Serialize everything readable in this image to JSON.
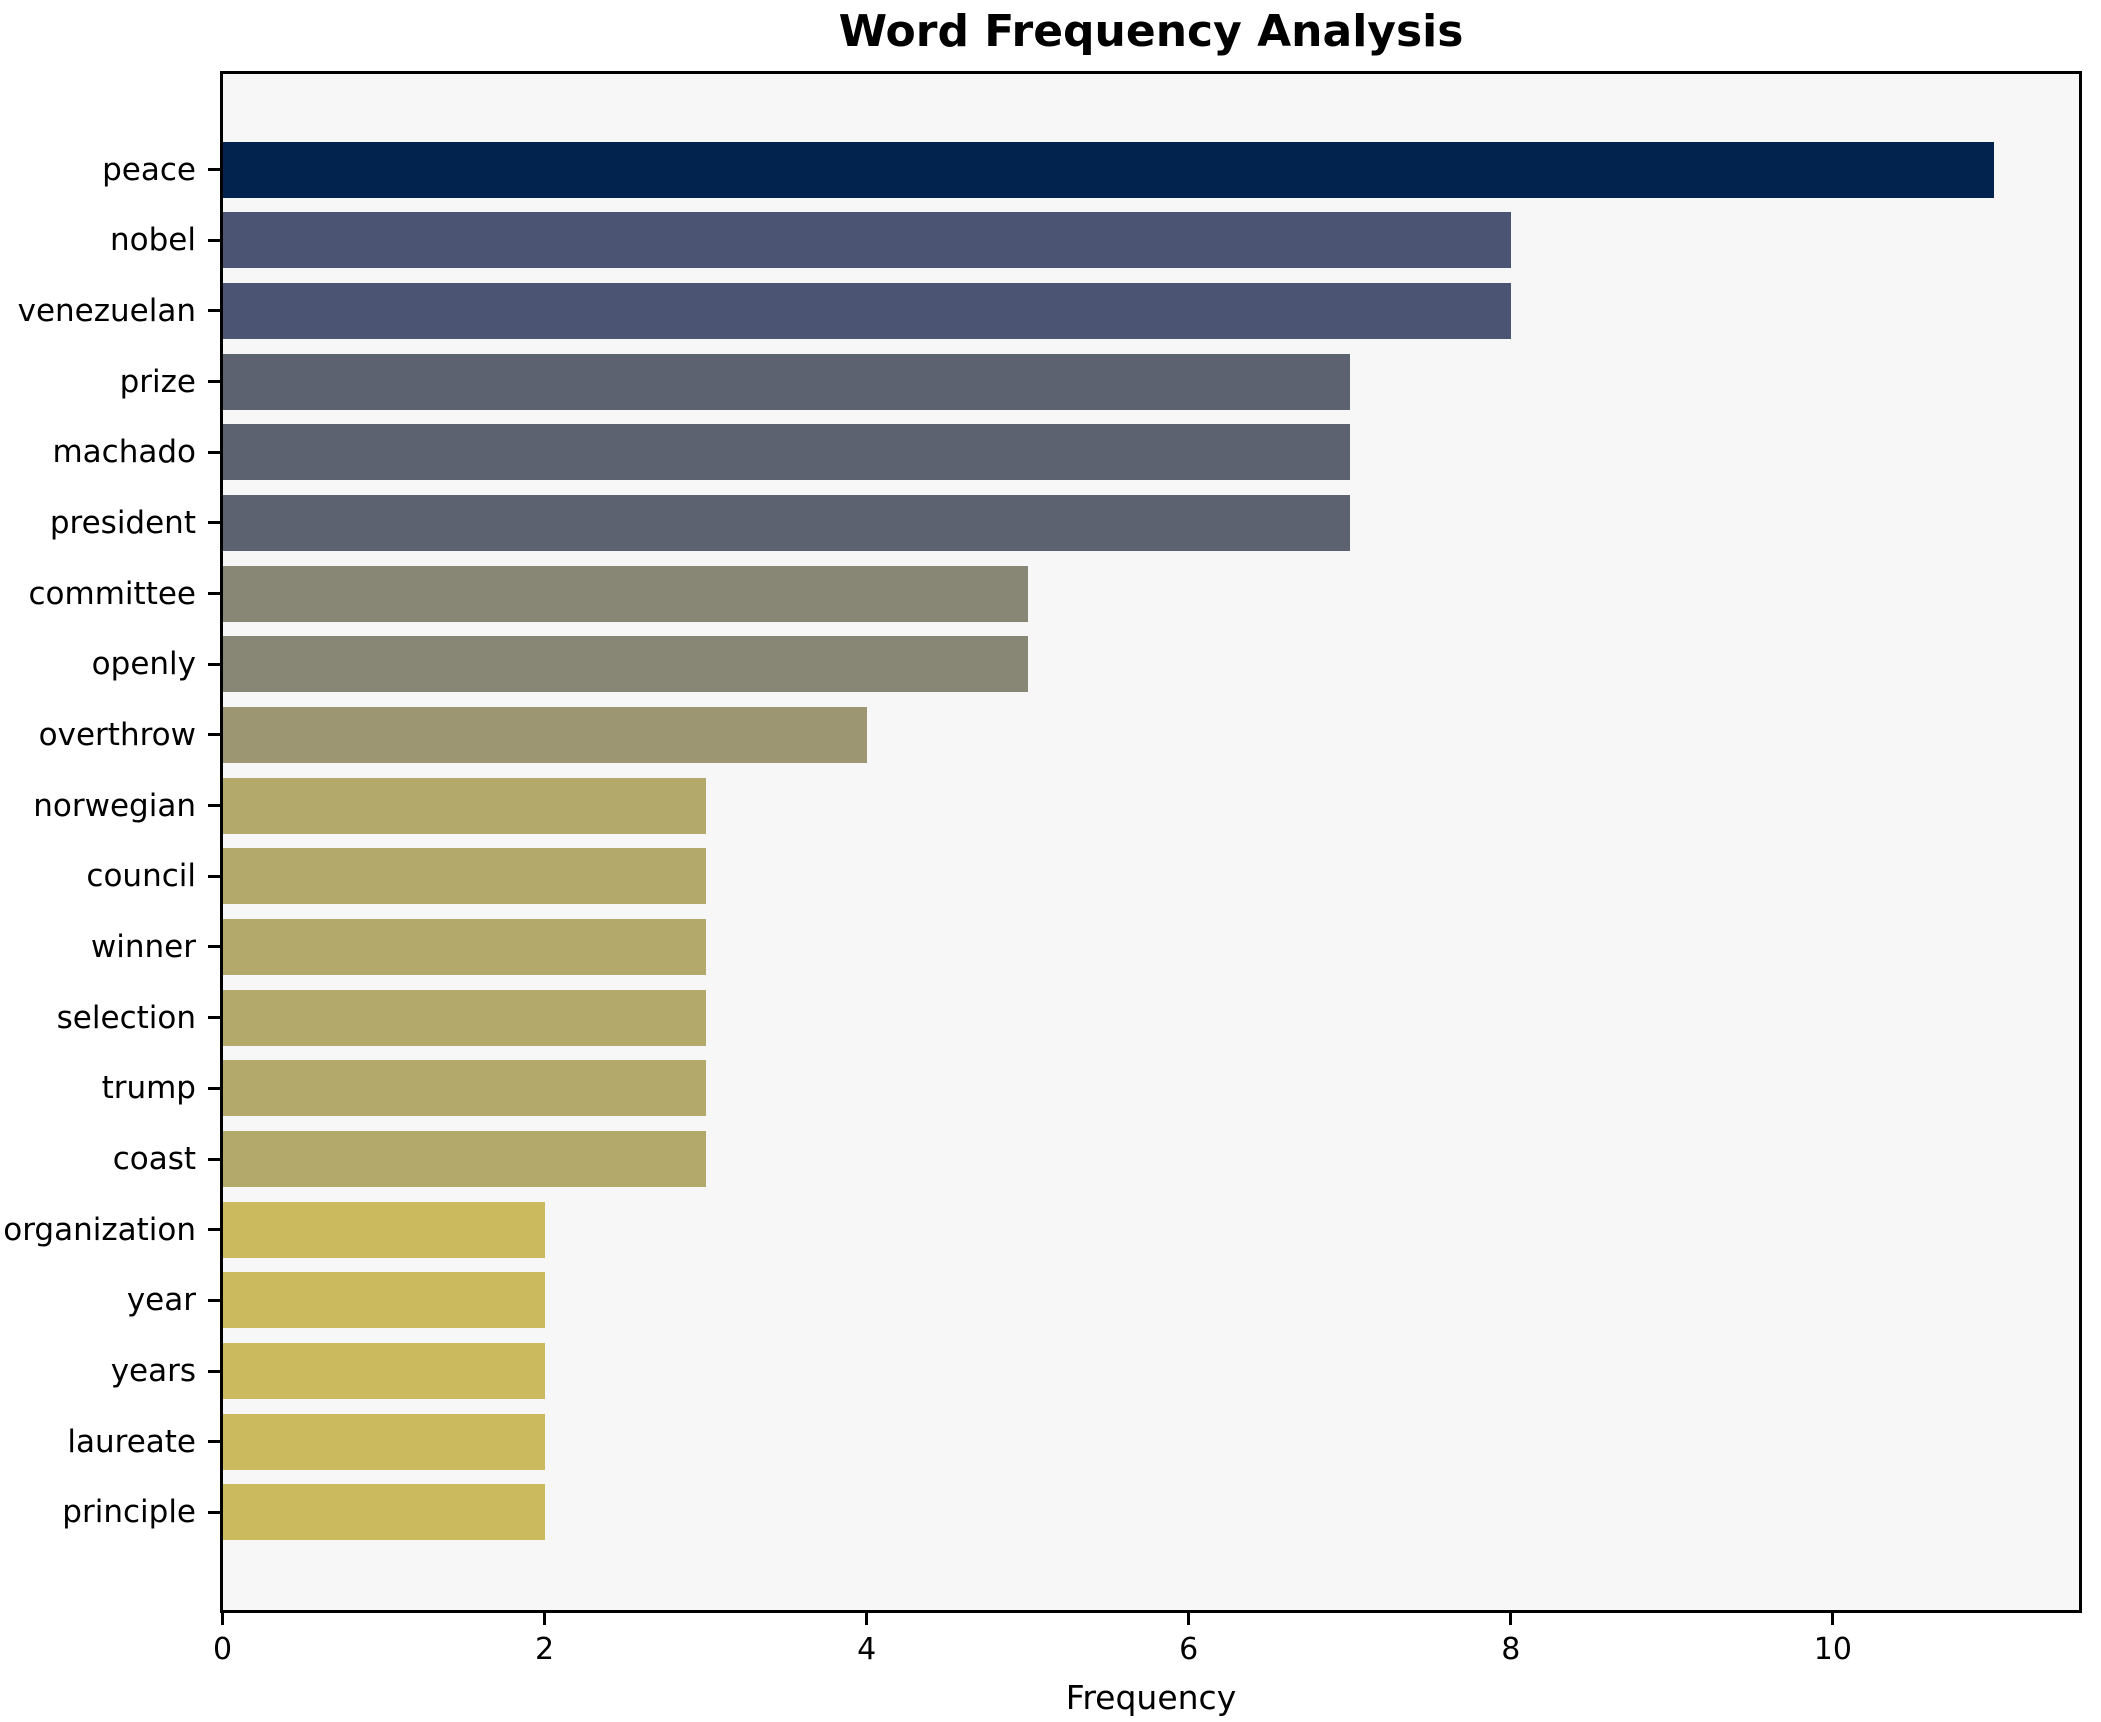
{
  "figure": {
    "title": "Word Frequency Analysis",
    "background": "#ffffff"
  },
  "chart_data": {
    "type": "bar",
    "orientation": "horizontal",
    "title": "Word Frequency Analysis",
    "xlabel": "Frequency",
    "ylabel": "",
    "categories": [
      "peace",
      "nobel",
      "venezuelan",
      "prize",
      "machado",
      "president",
      "committee",
      "openly",
      "overthrow",
      "norwegian",
      "council",
      "winner",
      "selection",
      "trump",
      "coast",
      "organization",
      "year",
      "years",
      "laureate",
      "principle"
    ],
    "values": [
      11,
      8,
      8,
      7,
      7,
      7,
      5,
      5,
      4,
      3,
      3,
      3,
      3,
      3,
      3,
      2,
      2,
      2,
      2,
      2
    ],
    "bar_colors": [
      "#02234e",
      "#4b5472",
      "#4b5472",
      "#5d6271",
      "#5d6271",
      "#5d6271",
      "#888674",
      "#888674",
      "#9d9673",
      "#b2a96b",
      "#b2a96b",
      "#b2a96b",
      "#b2a96b",
      "#b2a96b",
      "#b2a96b",
      "#ccba5e",
      "#ccba5e",
      "#ccba5e",
      "#ccba5e",
      "#ccba5e"
    ],
    "x_ticks": [
      "0",
      "2",
      "4",
      "6",
      "8",
      "10"
    ],
    "xlim": [
      0,
      11.55
    ],
    "grid": false,
    "legend": null,
    "plot_background": "#f7f7f7",
    "spine_color": "#000000",
    "text_color": "#000000"
  }
}
